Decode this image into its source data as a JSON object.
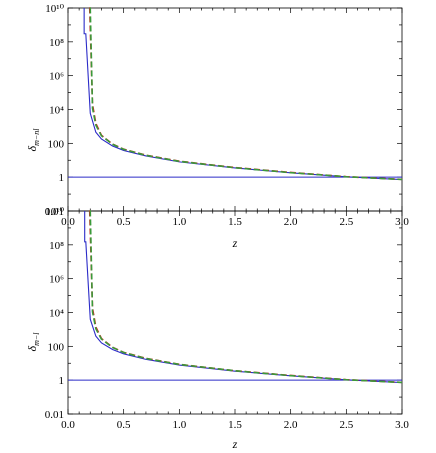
{
  "chart_data": [
    {
      "type": "line",
      "title": "",
      "xlabel": "z",
      "ylabel_main": "δ",
      "ylabel_sub": "m−nl",
      "xlim": [
        0.0,
        3.0
      ],
      "ylim": [
        0.01,
        10000000000.0
      ],
      "yscale": "log",
      "grid": false,
      "x_ticks": [
        "0.0",
        "0.5",
        "1.0",
        "1.5",
        "2.0",
        "2.5",
        "3.0"
      ],
      "y_ticks": [
        "0.01",
        "1",
        "100",
        "10⁴",
        "10⁶",
        "10⁸",
        "10¹⁰"
      ],
      "colors": {
        "solid": "#2b2bc8",
        "red": "#d42020",
        "green": "#3a9a3a",
        "reference": "#2b2bc8"
      },
      "series": [
        {
          "style": "solid",
          "color": "#2b2bc8",
          "pole": 0.145,
          "x": [
            0.16,
            0.2,
            0.25,
            0.3,
            0.4,
            0.5,
            0.7,
            1.0,
            1.5,
            2.0,
            2.5,
            3.0
          ],
          "y": [
            300000000.0,
            6000,
            450,
            180,
            70,
            38,
            18,
            8,
            3.5,
            1.8,
            1.05,
            0.72
          ]
        },
        {
          "style": "dashed",
          "color": "#d42020",
          "pole": 0.19,
          "x": [
            0.195,
            0.22,
            0.25,
            0.3,
            0.4,
            0.5,
            0.7,
            1.0,
            1.5,
            2.0,
            2.5,
            3.0
          ],
          "y": [
            10000000000.0,
            20000,
            1500,
            300,
            90,
            45,
            20,
            8.8,
            3.7,
            1.9,
            1.07,
            0.74
          ]
        },
        {
          "style": "dashed",
          "color": "#3a9a3a",
          "pole": 0.195,
          "x": [
            0.2,
            0.22,
            0.25,
            0.3,
            0.4,
            0.5,
            0.7,
            1.0,
            1.5,
            2.0,
            2.5,
            3.0
          ],
          "y": [
            10000000000.0,
            12000,
            1200,
            280,
            88,
            44,
            19.5,
            8.6,
            3.6,
            1.85,
            1.06,
            0.73
          ]
        },
        {
          "style": "reference",
          "color": "#2b2bc8",
          "x": [
            0.0,
            3.0
          ],
          "y": [
            1,
            1
          ]
        }
      ]
    },
    {
      "type": "line",
      "title": "",
      "xlabel": "z",
      "ylabel_main": "δ",
      "ylabel_sub": "m−l",
      "xlim": [
        0.0,
        3.0
      ],
      "ylim": [
        0.01,
        10000000000.0
      ],
      "yscale": "log",
      "grid": false,
      "x_ticks": [
        "0.0",
        "0.5",
        "1.0",
        "1.5",
        "2.0",
        "2.5",
        "3.0"
      ],
      "y_ticks": [
        "0.01",
        "1",
        "100",
        "10⁴",
        "10⁶",
        "10⁸",
        "10¹⁰"
      ],
      "colors": {
        "solid": "#2b2bc8",
        "red": "#d42020",
        "green": "#3a9a3a",
        "reference": "#2b2bc8"
      },
      "series": [
        {
          "style": "solid",
          "color": "#2b2bc8",
          "pole": 0.15,
          "x": [
            0.16,
            0.2,
            0.25,
            0.3,
            0.4,
            0.5,
            0.7,
            1.0,
            1.5,
            2.0,
            2.5,
            3.0
          ],
          "y": [
            150000000.0,
            4000,
            400,
            160,
            65,
            36,
            17,
            7.8,
            3.4,
            1.8,
            1.05,
            0.72
          ]
        },
        {
          "style": "dashed",
          "color": "#d42020",
          "pole": 0.19,
          "x": [
            0.195,
            0.22,
            0.25,
            0.3,
            0.4,
            0.5,
            0.7,
            1.0,
            1.5,
            2.0,
            2.5,
            3.0
          ],
          "y": [
            10000000000.0,
            18000,
            1400,
            290,
            88,
            44,
            19.5,
            8.6,
            3.6,
            1.9,
            1.07,
            0.74
          ]
        },
        {
          "style": "dashed",
          "color": "#3a9a3a",
          "pole": 0.195,
          "x": [
            0.2,
            0.22,
            0.25,
            0.3,
            0.4,
            0.5,
            0.7,
            1.0,
            1.5,
            2.0,
            2.5,
            3.0
          ],
          "y": [
            10000000000.0,
            11000,
            1100,
            270,
            86,
            43,
            19,
            8.5,
            3.6,
            1.85,
            1.06,
            0.73
          ]
        },
        {
          "style": "reference",
          "color": "#2b2bc8",
          "x": [
            0.0,
            3.0
          ],
          "y": [
            1,
            1
          ]
        }
      ]
    }
  ]
}
